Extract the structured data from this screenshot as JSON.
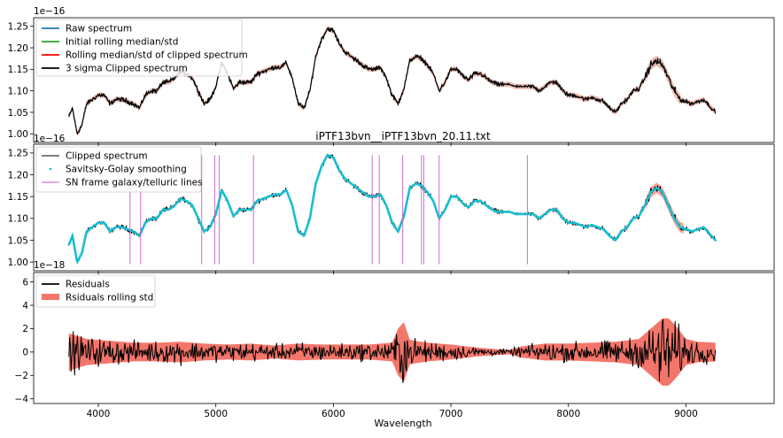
{
  "chart_data": [
    {
      "type": "line",
      "panel": "top",
      "title": "",
      "offset_label": "1e−16",
      "xlim": [
        3450,
        9750
      ],
      "ylim": [
        0.98,
        1.27
      ],
      "yticks": [
        1.0,
        1.05,
        1.1,
        1.15,
        1.2,
        1.25
      ],
      "ytick_labels": [
        "1.00",
        "1.05",
        "1.10",
        "1.15",
        "1.20",
        "1.25"
      ],
      "legend_position": "upper-left",
      "series": [
        {
          "name": "Raw spectrum",
          "color": "#1f77b4",
          "style": "line"
        },
        {
          "name": "Initial rolling median/std",
          "color": "#2ca02c",
          "style": "line"
        },
        {
          "name": "Rolling median/std of clipped spectrum",
          "color": "#ff0000",
          "style": "line"
        },
        {
          "name": "3 sigma Clipped spectrum",
          "color": "#000000",
          "style": "line"
        }
      ],
      "spectrum_points": {
        "x": [
          3750,
          3780,
          3820,
          3860,
          3900,
          3950,
          4000,
          4050,
          4100,
          4150,
          4200,
          4250,
          4300,
          4350,
          4400,
          4450,
          4500,
          4550,
          4600,
          4650,
          4700,
          4750,
          4800,
          4850,
          4900,
          4950,
          5000,
          5050,
          5100,
          5150,
          5200,
          5250,
          5300,
          5350,
          5400,
          5450,
          5500,
          5550,
          5600,
          5650,
          5700,
          5750,
          5800,
          5850,
          5900,
          5950,
          6000,
          6050,
          6100,
          6150,
          6200,
          6250,
          6300,
          6350,
          6400,
          6450,
          6500,
          6550,
          6600,
          6650,
          6700,
          6750,
          6800,
          6850,
          6900,
          6950,
          7000,
          7050,
          7100,
          7150,
          7200,
          7250,
          7300,
          7350,
          7400,
          7450,
          7500,
          7550,
          7600,
          7650,
          7700,
          7750,
          7800,
          7850,
          7900,
          7950,
          8000,
          8050,
          8100,
          8150,
          8200,
          8250,
          8300,
          8350,
          8400,
          8450,
          8500,
          8550,
          8600,
          8650,
          8700,
          8750,
          8800,
          8850,
          8900,
          8950,
          9000,
          9050,
          9100,
          9150,
          9200,
          9250
        ],
        "y": [
          1.04,
          1.06,
          1.0,
          1.02,
          1.07,
          1.08,
          1.09,
          1.09,
          1.07,
          1.08,
          1.08,
          1.075,
          1.07,
          1.06,
          1.09,
          1.1,
          1.1,
          1.12,
          1.12,
          1.13,
          1.145,
          1.14,
          1.13,
          1.1,
          1.07,
          1.08,
          1.11,
          1.165,
          1.14,
          1.105,
          1.12,
          1.12,
          1.12,
          1.14,
          1.145,
          1.15,
          1.155,
          1.155,
          1.165,
          1.13,
          1.07,
          1.06,
          1.1,
          1.18,
          1.22,
          1.245,
          1.24,
          1.21,
          1.19,
          1.18,
          1.17,
          1.16,
          1.15,
          1.15,
          1.155,
          1.13,
          1.09,
          1.07,
          1.105,
          1.17,
          1.18,
          1.175,
          1.16,
          1.14,
          1.1,
          1.12,
          1.15,
          1.15,
          1.135,
          1.125,
          1.14,
          1.14,
          1.13,
          1.12,
          1.115,
          1.115,
          1.115,
          1.11,
          1.11,
          1.11,
          1.11,
          1.1,
          1.11,
          1.12,
          1.12,
          1.1,
          1.09,
          1.09,
          1.085,
          1.08,
          1.085,
          1.08,
          1.075,
          1.06,
          1.05,
          1.07,
          1.08,
          1.1,
          1.105,
          1.13,
          1.16,
          1.17,
          1.16,
          1.13,
          1.1,
          1.08,
          1.075,
          1.07,
          1.075,
          1.08,
          1.065,
          1.05
        ]
      }
    },
    {
      "type": "line",
      "panel": "middle",
      "title": "iPTF13bvn__iPTF13bvn_20.11.txt",
      "offset_label": "1e−16",
      "xlim": [
        3450,
        9750
      ],
      "ylim": [
        0.98,
        1.27
      ],
      "yticks": [
        1.0,
        1.05,
        1.1,
        1.15,
        1.2,
        1.25
      ],
      "ytick_labels": [
        "1.00",
        "1.05",
        "1.10",
        "1.15",
        "1.20",
        "1.25"
      ],
      "legend_position": "upper-left",
      "series": [
        {
          "name": "Clipped spectrum",
          "color": "#000000",
          "style": "line"
        },
        {
          "name": "Savitsky-Golay smoothing",
          "color": "#17becf",
          "style": "dots"
        },
        {
          "name": "SN frame galaxy/telluric lines",
          "color": "#c85ac8",
          "style": "vline"
        }
      ],
      "line_positions": [
        4270,
        4360,
        4880,
        4990,
        5030,
        5320,
        6330,
        6390,
        6590,
        6750,
        6770,
        6900,
        7650
      ]
    },
    {
      "type": "line",
      "panel": "bottom",
      "title": "",
      "offset_label": "1e−18",
      "xlabel": "Wavelength",
      "xlim": [
        3450,
        9750
      ],
      "ylim": [
        -4.4,
        6.8
      ],
      "xticks": [
        4000,
        5000,
        6000,
        7000,
        8000,
        9000
      ],
      "xtick_labels": [
        "4000",
        "5000",
        "6000",
        "7000",
        "8000",
        "9000"
      ],
      "yticks": [
        -4,
        -2,
        0,
        2,
        4,
        6
      ],
      "ytick_labels": [
        "−4",
        "−2",
        "0",
        "2",
        "4",
        "6"
      ],
      "legend_position": "upper-left",
      "series": [
        {
          "name": "Residuals",
          "color": "#000000",
          "style": "line"
        },
        {
          "name": "Rsiduals rolling std",
          "color": "#f4766b",
          "style": "band"
        }
      ],
      "noise_envelope": {
        "x": [
          3750,
          3900,
          4100,
          4300,
          4500,
          4700,
          4900,
          5100,
          5300,
          5500,
          5700,
          5900,
          6100,
          6300,
          6500,
          6550,
          6600,
          6650,
          6800,
          7000,
          7200,
          7400,
          7500,
          7600,
          7800,
          8000,
          8200,
          8400,
          8600,
          8700,
          8800,
          8850,
          8900,
          9000,
          9100,
          9250
        ],
        "amp": [
          2.0,
          1.4,
          1.2,
          1.0,
          1.0,
          1.1,
          0.9,
          0.8,
          0.9,
          0.7,
          0.9,
          0.8,
          0.8,
          0.8,
          1.0,
          2.5,
          3.2,
          1.3,
          1.0,
          0.8,
          0.5,
          0.3,
          0.25,
          0.6,
          0.9,
          0.9,
          1.0,
          1.1,
          1.4,
          2.5,
          3.6,
          3.6,
          3.0,
          1.4,
          1.1,
          1.0
        ]
      }
    }
  ]
}
